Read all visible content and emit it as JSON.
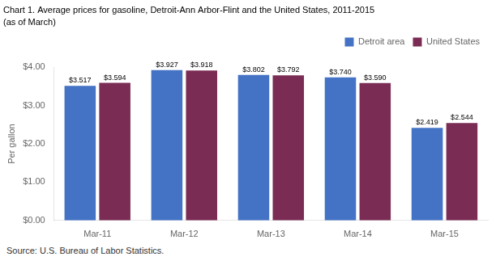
{
  "chart_data": {
    "type": "bar",
    "title": "Chart 1. Average prices for gasoline, Detroit-Ann Arbor-Flint and the United States, 2011-2015",
    "subtitle": "(as of March)",
    "ylabel": "Per gallon",
    "annotation": "Source: U.S. Bureau of Labor Statistics.",
    "categories": [
      "Mar-11",
      "Mar-12",
      "Mar-13",
      "Mar-14",
      "Mar-15"
    ],
    "series": [
      {
        "name": "Detroit area",
        "color": "#4472C4",
        "values": [
          3.517,
          3.927,
          3.802,
          3.74,
          2.419
        ],
        "value_labels": [
          "$3.517",
          "$3.927",
          "$3.802",
          "$3.740",
          "$2.419"
        ]
      },
      {
        "name": "United States",
        "color": "#7B2C55",
        "values": [
          3.594,
          3.918,
          3.792,
          3.59,
          2.544
        ],
        "value_labels": [
          "$3.594",
          "$3.918",
          "$3.792",
          "$3.590",
          "$2.544"
        ]
      }
    ],
    "ylim": [
      0,
      4.0
    ],
    "yticks": [
      {
        "value": 0.0,
        "label": "$0.00"
      },
      {
        "value": 1.0,
        "label": "$1.00"
      },
      {
        "value": 2.0,
        "label": "$2.00"
      },
      {
        "value": 3.0,
        "label": "$3.00"
      },
      {
        "value": 4.0,
        "label": "$4.00"
      }
    ],
    "data_labels": true,
    "legend": "upper right",
    "grid": false
  }
}
